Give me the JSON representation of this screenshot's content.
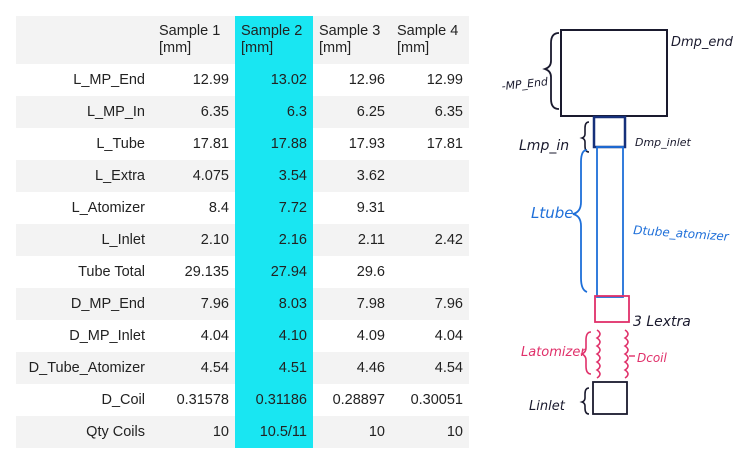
{
  "table": {
    "columns": [
      "",
      "Sample 1\n[mm]",
      "Sample 2\n[mm]",
      "Sample 3\n[mm]",
      "Sample 4\n[mm]"
    ],
    "header_lines": [
      [
        "Sample 1",
        "[mm]"
      ],
      [
        "Sample 2",
        "[mm]"
      ],
      [
        "Sample 3",
        "[mm]"
      ],
      [
        "Sample 4",
        "[mm]"
      ]
    ],
    "highlight_color": "#19e6f2",
    "rows": [
      {
        "label": "L_MP_End",
        "values": [
          "12.99",
          "13.02",
          "12.96",
          "12.99"
        ]
      },
      {
        "label": "L_MP_In",
        "values": [
          "6.35",
          "6.3",
          "6.25",
          "6.35"
        ]
      },
      {
        "label": "L_Tube",
        "values": [
          "17.81",
          "17.88",
          "17.93",
          "17.81"
        ]
      },
      {
        "label": "L_Extra",
        "values": [
          "4.075",
          "3.54",
          "3.62",
          ""
        ]
      },
      {
        "label": "L_Atomizer",
        "values": [
          "8.4",
          "7.72",
          "9.31",
          ""
        ]
      },
      {
        "label": "L_Inlet",
        "values": [
          "2.10",
          "2.16",
          "2.11",
          "2.42"
        ]
      },
      {
        "label": "Tube Total",
        "values": [
          "29.135",
          "27.94",
          "29.6",
          ""
        ]
      },
      {
        "label": "D_MP_End",
        "values": [
          "7.96",
          "8.03",
          "7.98",
          "7.96"
        ]
      },
      {
        "label": "D_MP_Inlet",
        "values": [
          "4.04",
          "4.10",
          "4.09",
          "4.04"
        ]
      },
      {
        "label": "D_Tube_Atomizer",
        "values": [
          "4.54",
          "4.51",
          "4.46",
          "4.54"
        ]
      },
      {
        "label": "D_Coil",
        "values": [
          "0.31578",
          "0.31186",
          "0.28897",
          "0.30051"
        ]
      },
      {
        "label": "Qty Coils",
        "values": [
          "10",
          "10.5/11",
          "10",
          "10"
        ]
      }
    ]
  },
  "sketch": {
    "labels": {
      "d_mp_end": "Dmp_end",
      "mp_end": "-MP_End",
      "l_mp_in": "Lmp_in",
      "d_mp_inlet": "Dmp_inlet",
      "l_tube": "Ltube",
      "d_tube_atomizer": "Dtube_atomizer",
      "l_extra": "3 Lextra",
      "l_atomizer": "Latomizer",
      "d_coil": "Dcoil",
      "l_inlet": "Linlet"
    },
    "colors": {
      "black": "#1a1a2e",
      "blue": "#1e6fd9",
      "pink": "#e0306a"
    }
  }
}
